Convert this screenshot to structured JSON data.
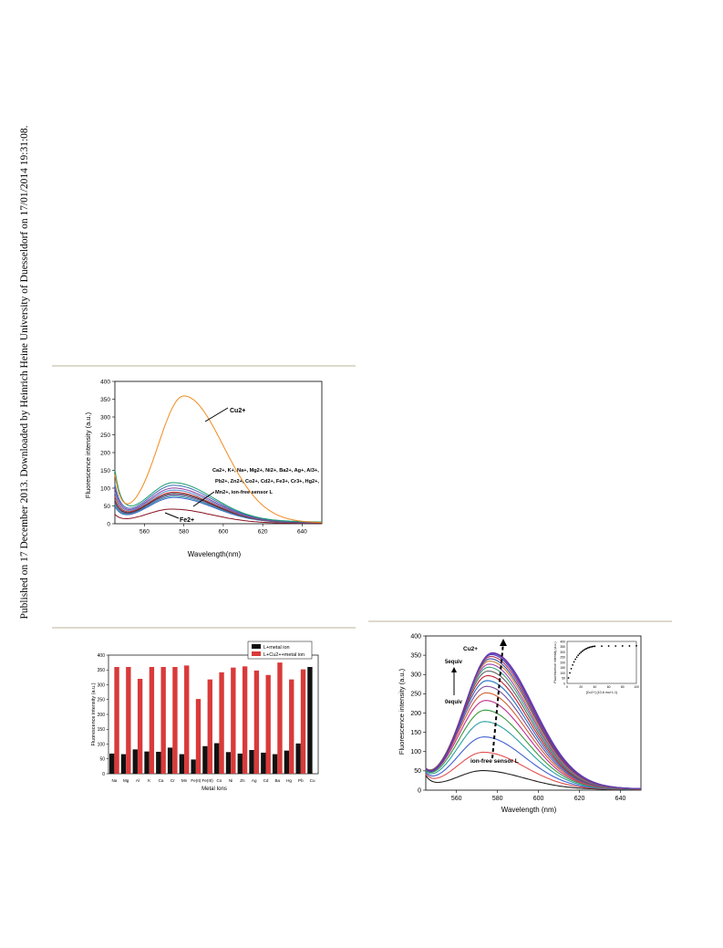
{
  "watermark": "Published on 17 December 2013. Downloaded by Heinrich Heine University of Duesseldorf on 17/01/2014 19:31:08.",
  "chart_data": [
    {
      "type": "line",
      "xlabel": "Wavelength(nm)",
      "ylabel": "Fluorescence intensity (a.u.)",
      "xlim": [
        545,
        650
      ],
      "ylim": [
        0,
        400
      ],
      "xticks": [
        560,
        580,
        600,
        620,
        640
      ],
      "yticks": [
        0,
        50,
        100,
        150,
        200,
        250,
        300,
        350,
        400
      ],
      "series": [
        {
          "name": "Cu2+",
          "color": "#f28a1e",
          "peak_x": 580,
          "peak_y": 362,
          "floor_y": 22,
          "start_y": 120
        },
        {
          "color": "#1a9a6c",
          "peak_x": 575,
          "peak_y": 120,
          "floor_y": 40,
          "start_y": 128
        },
        {
          "color": "#3a6fb5",
          "peak_x": 575,
          "peak_y": 112,
          "floor_y": 35,
          "start_y": 90
        },
        {
          "color": "#8a3fa0",
          "peak_x": 575,
          "peak_y": 104,
          "floor_y": 32,
          "start_y": 80
        },
        {
          "color": "#5588cc",
          "peak_x": 575,
          "peak_y": 98,
          "floor_y": 30,
          "start_y": 70
        },
        {
          "color": "#c03030",
          "peak_x": 575,
          "peak_y": 92,
          "floor_y": 28,
          "start_y": 60
        },
        {
          "color": "#333333",
          "peak_x": 575,
          "peak_y": 88,
          "floor_y": 26,
          "start_y": 50
        },
        {
          "color": "#7a4d9a",
          "peak_x": 575,
          "peak_y": 84,
          "floor_y": 24,
          "start_y": 45
        },
        {
          "color": "#2aa0a0",
          "peak_x": 575,
          "peak_y": 80,
          "floor_y": 22,
          "start_y": 40
        },
        {
          "color": "#4060d0",
          "peak_x": 575,
          "peak_y": 76,
          "floor_y": 20,
          "start_y": 36
        },
        {
          "name": "Fe2+",
          "color": "#8a1020",
          "peak_x": 574,
          "peak_y": 42,
          "floor_y": 8,
          "start_y": 20
        }
      ],
      "annotations": {
        "cu": "Cu2+",
        "fe": "Fe2+",
        "group_line1": "Ca2+, K+, Na+, Mg2+, Ni2+, Ba2+, Ag+, Al3+,",
        "group_line2": "Pb2+, Zn2+, Co2+, Cd2+, Fe3+, Cr3+, Hg2+,",
        "group_line3": "Mn2+, ion-free sensor L"
      }
    },
    {
      "type": "bar",
      "xlabel": "Metal Ions",
      "ylabel": "Fluorescence intensity (a.u.)",
      "ylim": [
        0,
        400
      ],
      "yticks": [
        0,
        50,
        100,
        150,
        200,
        250,
        300,
        350,
        400
      ],
      "categories": [
        "Na",
        "Mg",
        "Al",
        "K",
        "Ca",
        "Cr",
        "Mn",
        "Fe(II)",
        "Fe(III)",
        "Co",
        "Ni",
        "Zn",
        "Ag",
        "Cd",
        "Ba",
        "Hg",
        "Pb",
        "Cu"
      ],
      "series": [
        {
          "name": "L+metal ion",
          "color": "#111111",
          "values": [
            68,
            66,
            82,
            75,
            74,
            88,
            66,
            48,
            93,
            103,
            73,
            68,
            80,
            71,
            66,
            78,
            102,
            360
          ]
        },
        {
          "name": "L+Cu2++metal ion",
          "color": "#d93a3a",
          "values": [
            360,
            360,
            320,
            360,
            360,
            360,
            365,
            252,
            318,
            342,
            358,
            362,
            348,
            333,
            375,
            318,
            352,
            0
          ]
        }
      ],
      "legend_position": "top-right"
    },
    {
      "type": "line",
      "xlabel": "Wavelength (nm)",
      "ylabel": "Fluorescence intensity (a.u.)",
      "xlim": [
        545,
        650
      ],
      "ylim": [
        0,
        400
      ],
      "xticks": [
        560,
        580,
        600,
        620,
        640
      ],
      "yticks": [
        0,
        50,
        100,
        150,
        200,
        250,
        300,
        350,
        400
      ],
      "peak_intensities": [
        52,
        100,
        140,
        180,
        210,
        235,
        255,
        272,
        287,
        300,
        312,
        322,
        330,
        338,
        344,
        350,
        355,
        358,
        360
      ],
      "colors": [
        "#222222",
        "#e05050",
        "#4060d0",
        "#2aa0a0",
        "#3a9a40",
        "#c03090",
        "#d06030",
        "#7a4d9a",
        "#2070c0",
        "#c02030",
        "#606060",
        "#40a080",
        "#a040b0",
        "#d08030",
        "#3050a0",
        "#b03050",
        "#4040c0",
        "#8030a0",
        "#6040b0"
      ],
      "annotations": {
        "cu": "Cu2+",
        "top_equiv": "5equiv",
        "bottom_equiv": "0equiv",
        "free": "ion-free sensor L"
      },
      "inset": {
        "type": "scatter",
        "xlabel": "[Cu2+] (10-6 mol·L-1)",
        "ylabel": "Fluorescence intensity (a.u.)",
        "xlim": [
          0,
          100
        ],
        "ylim": [
          0,
          400
        ],
        "xticks": [
          0,
          20,
          40,
          60,
          80,
          100
        ],
        "yticks": [
          0,
          50,
          100,
          150,
          200,
          250,
          300,
          350,
          400
        ],
        "x": [
          2,
          4,
          6,
          8,
          10,
          12,
          14,
          16,
          18,
          20,
          22,
          24,
          26,
          28,
          30,
          32,
          34,
          36,
          38,
          40,
          50,
          60,
          70,
          80,
          90,
          100
        ],
        "y": [
          52,
          100,
          140,
          175,
          205,
          230,
          250,
          268,
          283,
          296,
          307,
          317,
          325,
          332,
          338,
          343,
          347,
          350,
          352,
          354,
          355,
          356,
          356,
          357,
          357,
          358
        ]
      }
    }
  ]
}
